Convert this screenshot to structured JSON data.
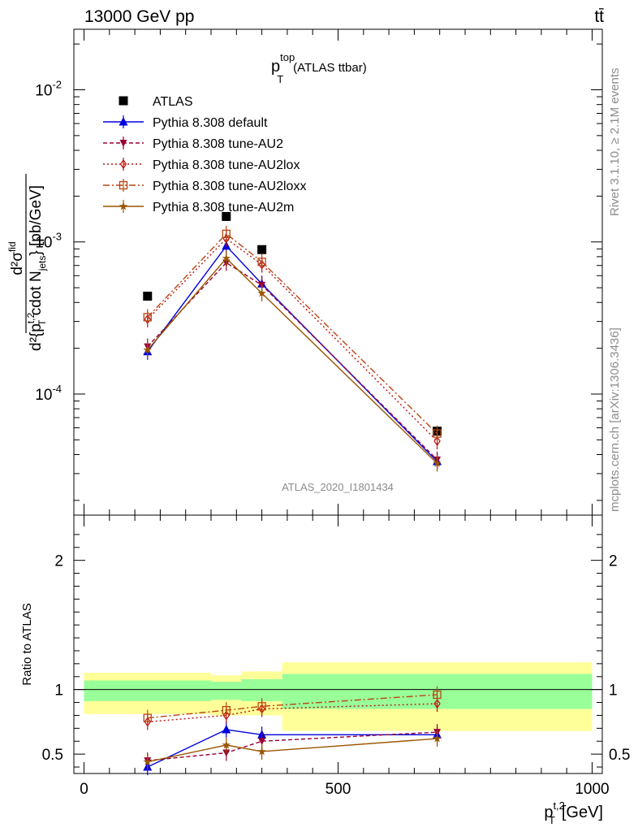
{
  "header": {
    "left": "13000 GeV pp",
    "right": "tt̄"
  },
  "side_text": {
    "rivet": "Rivet 3.1.10, ≥ 2.1M events",
    "mcplots": "mcplots.cern.ch [arXiv:1306.3436]"
  },
  "plot_title": {
    "main": "p",
    "sup": "top",
    "sub": "T",
    "rest": "(ATLAS ttbar)"
  },
  "watermark": "ATLAS_2020_I1801434",
  "colors": {
    "atlas": "#000000",
    "default": "#0000dd",
    "au2": "#990033",
    "au2lox": "#bb1111",
    "au2loxx": "#bb4411",
    "au2m": "#995500",
    "band_inner": "#99ff99",
    "band_outer": "#ffff99"
  },
  "chart_data": [
    {
      "type": "scatter",
      "panel": "main",
      "ylabel": "d²σ^fid / d²{p_T^t,2 cdot N_jets} [pb/GeV]",
      "yscale": "log",
      "ylim": [
        1.6e-05,
        0.025
      ],
      "xlim": [
        -20,
        1020
      ],
      "y_ticks": [
        "10^{-2}",
        "10^{-3}",
        "10^{-4}"
      ],
      "legend_position": "top-left",
      "series": [
        {
          "name": "ATLAS",
          "key": "atlas",
          "x": [
            125,
            280,
            350,
            695
          ],
          "values": [
            0.00044,
            0.00147,
            0.00089,
            5.7e-05
          ]
        },
        {
          "name": "Pythia 8.308 default",
          "key": "default",
          "x": [
            125,
            280,
            350,
            695
          ],
          "values": [
            0.00019,
            0.00094,
            0.00053,
            3.6e-05
          ]
        },
        {
          "name": "Pythia 8.308 tune-AU2",
          "key": "au2",
          "x": [
            125,
            280,
            350,
            695
          ],
          "values": [
            0.000205,
            0.00073,
            0.00052,
            3.7e-05
          ]
        },
        {
          "name": "Pythia 8.308 tune-AU2lox",
          "key": "au2lox",
          "x": [
            125,
            280,
            350,
            695
          ],
          "values": [
            0.00031,
            0.00105,
            0.00071,
            4.9e-05
          ]
        },
        {
          "name": "Pythia 8.308 tune-AU2loxx",
          "key": "au2loxx",
          "x": [
            125,
            280,
            350,
            695
          ],
          "values": [
            0.00032,
            0.00113,
            0.00074,
            5.5e-05
          ]
        },
        {
          "name": "Pythia 8.308 tune-AU2m",
          "key": "au2m",
          "x": [
            125,
            280,
            350,
            695
          ],
          "values": [
            0.000195,
            0.00078,
            0.00046,
            3.5e-05
          ]
        }
      ]
    },
    {
      "type": "line",
      "panel": "ratio",
      "ylabel": "Ratio to ATLAS",
      "xlabel": "p_T^t,2 [GeV]",
      "ylim": [
        0.35,
        2.35
      ],
      "xlim": [
        -20,
        1020
      ],
      "x_ticks": [
        0,
        500,
        1000
      ],
      "y_ticks": [
        0.5,
        1,
        2
      ],
      "bands": {
        "edges": [
          0,
          250,
          310,
          390,
          1000
        ],
        "inner_low": [
          0.91,
          0.92,
          0.91,
          0.85
        ],
        "inner_high": [
          1.07,
          1.06,
          1.08,
          1.12
        ],
        "outer_low": [
          0.81,
          0.8,
          0.8,
          0.68
        ],
        "outer_high": [
          1.13,
          1.11,
          1.14,
          1.21
        ]
      },
      "series": [
        {
          "name": "Pythia 8.308 default",
          "key": "default",
          "x": [
            125,
            280,
            350,
            695
          ],
          "values": [
            0.4,
            0.69,
            0.65,
            0.65
          ]
        },
        {
          "name": "Pythia 8.308 tune-AU2",
          "key": "au2",
          "x": [
            125,
            280,
            350,
            695
          ],
          "values": [
            0.45,
            0.51,
            0.6,
            0.67
          ]
        },
        {
          "name": "Pythia 8.308 tune-AU2lox",
          "key": "au2lox",
          "x": [
            125,
            280,
            350,
            695
          ],
          "values": [
            0.75,
            0.8,
            0.85,
            0.89
          ]
        },
        {
          "name": "Pythia 8.308 tune-AU2loxx",
          "key": "au2loxx",
          "x": [
            125,
            280,
            350,
            695
          ],
          "values": [
            0.78,
            0.84,
            0.87,
            0.96
          ]
        },
        {
          "name": "Pythia 8.308 tune-AU2m",
          "key": "au2m",
          "x": [
            125,
            280,
            350,
            695
          ],
          "values": [
            0.44,
            0.57,
            0.52,
            0.62
          ]
        }
      ]
    }
  ]
}
